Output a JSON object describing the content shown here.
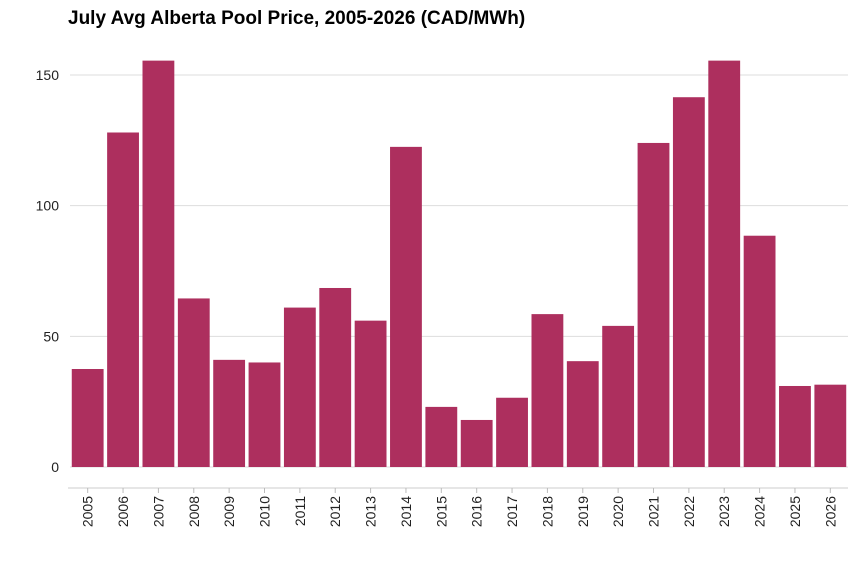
{
  "chart_data": {
    "type": "bar",
    "title": "July Avg Alberta Pool Price, 2005-2026 (CAD/MWh)",
    "xlabel": "",
    "ylabel": "",
    "ylim": [
      0,
      160
    ],
    "yticks": [
      0,
      50,
      100,
      150
    ],
    "grid": "horizontal",
    "legend": "none",
    "bar_color": "#ad2f5e",
    "categories": [
      "2005",
      "2006",
      "2007",
      "2008",
      "2009",
      "2010",
      "2011",
      "2012",
      "2013",
      "2014",
      "2015",
      "2016",
      "2017",
      "2018",
      "2019",
      "2020",
      "2021",
      "2022",
      "2023",
      "2024",
      "2025",
      "2026"
    ],
    "values": [
      37.5,
      128,
      155.5,
      64.5,
      41,
      40,
      61,
      68.5,
      56,
      122.5,
      23,
      18,
      26.5,
      58.5,
      40.5,
      54,
      124,
      141.5,
      155.5,
      88.5,
      31,
      31.5
    ]
  }
}
